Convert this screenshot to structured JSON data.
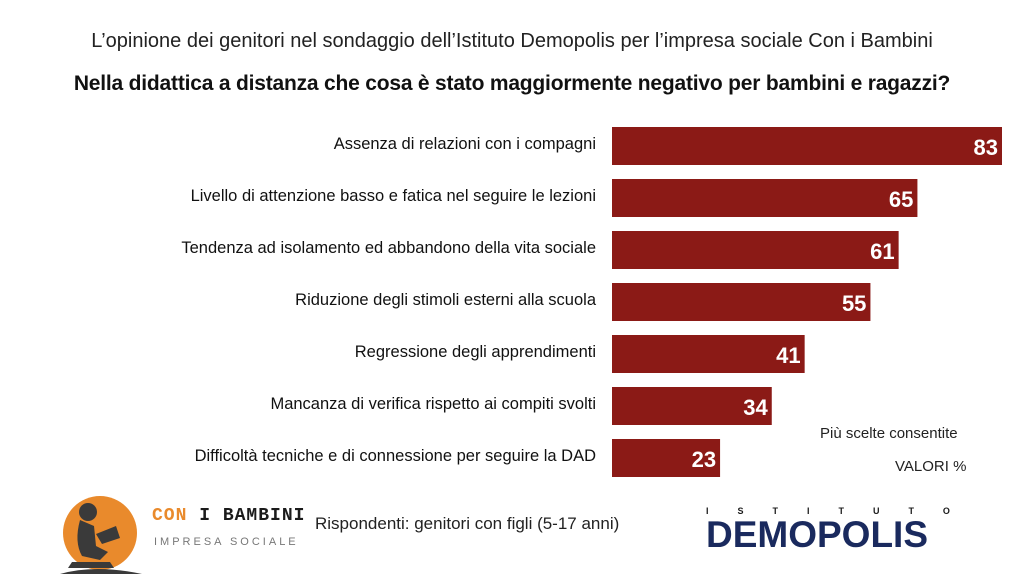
{
  "header": {
    "subtitle": "L’opinione dei genitori nel sondaggio dell’Istituto Demopolis per l’impresa sociale Con i Bambini",
    "title": "Nella didattica a distanza che cosa è stato maggiormente negativo per bambini e ragazzi?"
  },
  "chart_data": {
    "type": "bar",
    "orientation": "horizontal",
    "categories": [
      "Assenza di relazioni con i compagni",
      "Livello di attenzione basso e fatica nel seguire le lezioni",
      "Tendenza ad isolamento ed abbandono della vita sociale",
      "Riduzione degli stimoli esterni alla scuola",
      "Regressione degli apprendimenti",
      "Mancanza di verifica rispetto ai compiti svolti",
      "Difficoltà tecniche e di connessione per seguire la DAD"
    ],
    "values": [
      83,
      65,
      61,
      55,
      41,
      34,
      23
    ],
    "bar_color": "#8b1a16",
    "value_label_color": "#ffffff",
    "xlim": [
      0,
      83
    ],
    "grid": false,
    "legend": "none"
  },
  "notes": {
    "scelte": "Più scelte consentite",
    "valori": "VALORI %"
  },
  "footer": {
    "respondents": "Rispondenti: genitori con figli (5-17 anni)",
    "logo_left": {
      "word1": "CON",
      "word2": "I BAMBINI",
      "sub": "IMPRESA SOCIALE",
      "accent_color": "#e98a2c"
    },
    "logo_right": {
      "top": "ISTITUTO",
      "main": "DEMOPOLIS",
      "color": "#1a2a5e",
      "accent_color": "#e98a2c"
    }
  }
}
